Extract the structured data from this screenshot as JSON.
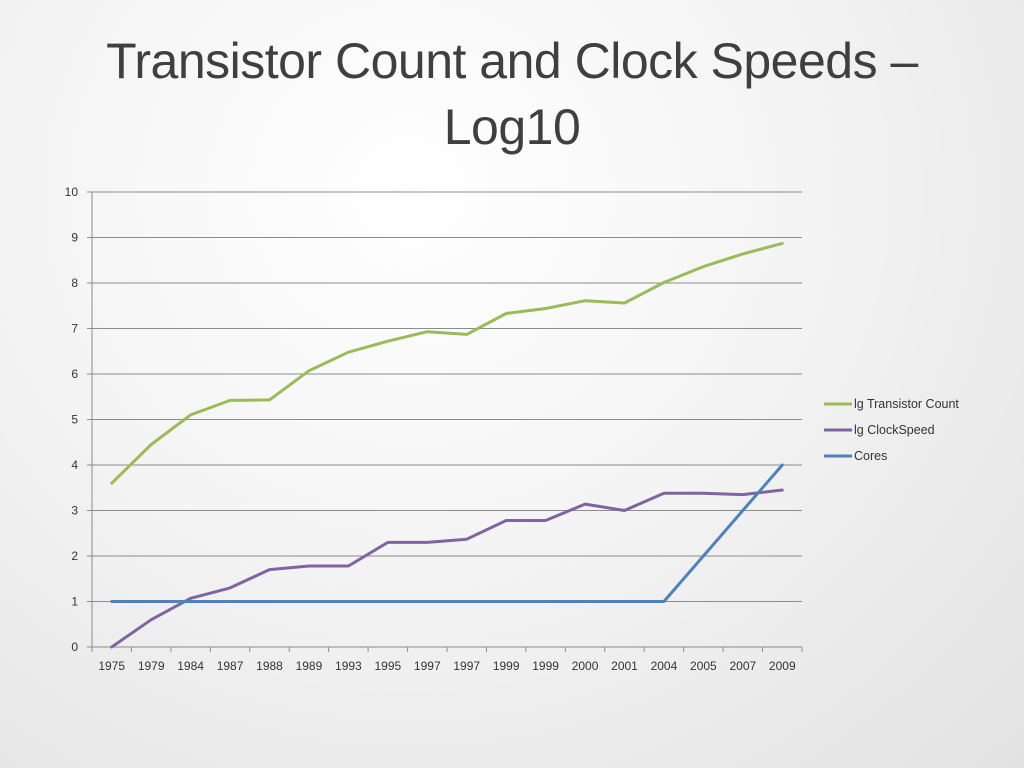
{
  "slide": {
    "title_line1": "Transistor Count and Clock Speeds –",
    "title_line2": "Log10"
  },
  "chart_data": {
    "type": "line",
    "title": "Transistor Count and Clock Speeds – Log10",
    "xlabel": "",
    "ylabel": "",
    "ylim": [
      0,
      10
    ],
    "yticks": [
      0,
      1,
      2,
      3,
      4,
      5,
      6,
      7,
      8,
      9,
      10
    ],
    "grid": true,
    "legend_position": "right",
    "categories": [
      "1975",
      "1979",
      "1984",
      "1987",
      "1988",
      "1989",
      "1993",
      "1995",
      "1997",
      "1997",
      "1999",
      "1999",
      "2000",
      "2001",
      "2004",
      "2005",
      "2007",
      "2009"
    ],
    "series": [
      {
        "name": "lg Transistor Count",
        "color": "#9bbb59",
        "values": [
          3.6,
          4.45,
          5.1,
          5.42,
          5.43,
          6.07,
          6.48,
          6.72,
          6.93,
          6.87,
          7.33,
          7.44,
          7.61,
          7.56,
          8.01,
          8.36,
          8.64,
          8.87
        ]
      },
      {
        "name": "lg ClockSpeed",
        "color": "#8064a2",
        "values": [
          0.0,
          0.6,
          1.07,
          1.3,
          1.7,
          1.78,
          1.78,
          2.3,
          2.3,
          2.37,
          2.78,
          2.78,
          3.14,
          3.0,
          3.38,
          3.38,
          3.35,
          3.45
        ]
      },
      {
        "name": "Cores",
        "color": "#4f81bd",
        "values": [
          1,
          1,
          1,
          1,
          1,
          1,
          1,
          1,
          1,
          1,
          1,
          1,
          1,
          1,
          1,
          2,
          3,
          4
        ]
      }
    ]
  }
}
